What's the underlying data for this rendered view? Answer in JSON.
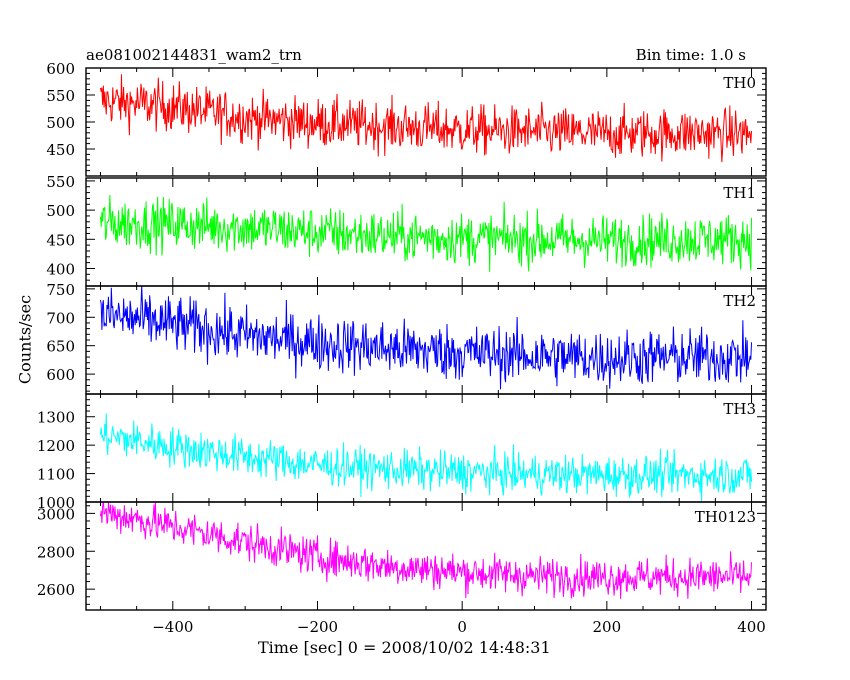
{
  "header": {
    "title": "ae081002144831_wam2_trn",
    "bin_time": "Bin time: 1.0 s"
  },
  "chart_data": {
    "type": "line",
    "xlabel": "Time [sec] 0 = 2008/10/02 14:48:31",
    "ylabel": "Counts/sec",
    "xlim": [
      -520,
      420
    ],
    "x_ticks": [
      -400,
      -200,
      0,
      200,
      400
    ],
    "x_start": -500,
    "x_end": 400,
    "x_step": 1,
    "grid": false,
    "panels": [
      {
        "name": "TH0",
        "color": "#ff0000",
        "ylim": [
          400,
          600
        ],
        "y_ticks": [
          450,
          500,
          550,
          600
        ],
        "trend": [
          [
            -500,
            540
          ],
          [
            -400,
            528
          ],
          [
            -300,
            508
          ],
          [
            -200,
            498
          ],
          [
            -100,
            492
          ],
          [
            0,
            485
          ],
          [
            100,
            482
          ],
          [
            200,
            478
          ],
          [
            300,
            480
          ],
          [
            400,
            478
          ]
        ],
        "noise": 23
      },
      {
        "name": "TH1",
        "color": "#00ff00",
        "ylim": [
          370,
          555
        ],
        "y_ticks": [
          400,
          450,
          500,
          550
        ],
        "trend": [
          [
            -500,
            478
          ],
          [
            -400,
            476
          ],
          [
            -300,
            470
          ],
          [
            -200,
            462
          ],
          [
            -100,
            455
          ],
          [
            0,
            452
          ],
          [
            100,
            450
          ],
          [
            200,
            448
          ],
          [
            300,
            450
          ],
          [
            400,
            450
          ]
        ],
        "noise": 22
      },
      {
        "name": "TH2",
        "color": "#0000ff",
        "ylim": [
          565,
          755
        ],
        "y_ticks": [
          600,
          650,
          700,
          750
        ],
        "trend": [
          [
            -500,
            705
          ],
          [
            -400,
            688
          ],
          [
            -300,
            668
          ],
          [
            -200,
            655
          ],
          [
            -100,
            645
          ],
          [
            0,
            638
          ],
          [
            100,
            632
          ],
          [
            200,
            628
          ],
          [
            300,
            630
          ],
          [
            400,
            630
          ]
        ],
        "noise": 25
      },
      {
        "name": "TH3",
        "color": "#00ffff",
        "ylim": [
          1000,
          1380
        ],
        "y_ticks": [
          1000,
          1100,
          1200,
          1300
        ],
        "trend": [
          [
            -500,
            1235
          ],
          [
            -400,
            1195
          ],
          [
            -300,
            1160
          ],
          [
            -200,
            1130
          ],
          [
            -100,
            1115
          ],
          [
            0,
            1105
          ],
          [
            100,
            1098
          ],
          [
            200,
            1095
          ],
          [
            300,
            1095
          ],
          [
            400,
            1095
          ]
        ],
        "noise": 35
      },
      {
        "name": "TH0123",
        "color": "#ff00ff",
        "ylim": [
          2490,
          3060
        ],
        "y_ticks": [
          2600,
          2800,
          3000
        ],
        "trend": [
          [
            -500,
            3010
          ],
          [
            -400,
            2930
          ],
          [
            -300,
            2850
          ],
          [
            -200,
            2770
          ],
          [
            -100,
            2720
          ],
          [
            0,
            2690
          ],
          [
            100,
            2670
          ],
          [
            200,
            2665
          ],
          [
            300,
            2665
          ],
          [
            400,
            2665
          ]
        ],
        "noise": 50
      }
    ]
  }
}
